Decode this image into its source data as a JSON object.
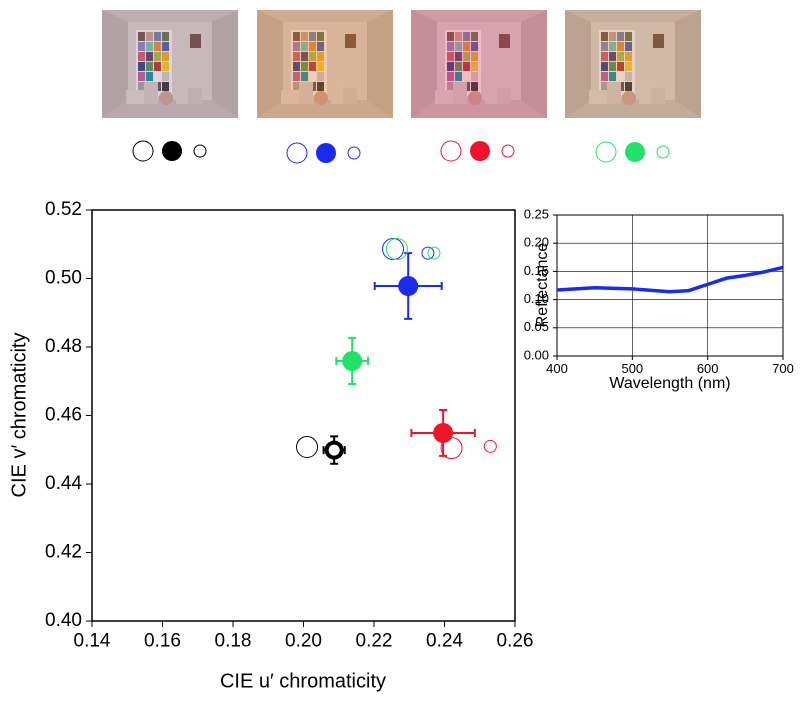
{
  "chart_data": [
    {
      "type": "scatter",
      "xlabel": "CIE u′ chromaticity",
      "ylabel": "CIE v′ chromaticity",
      "xlim": [
        0.14,
        0.26
      ],
      "ylim": [
        0.4,
        0.52
      ],
      "xticks": [
        0.14,
        0.16,
        0.18,
        {
          "value": 0.2,
          "label": "0.20"
        },
        0.22,
        0.24,
        0.26
      ],
      "yticks": [
        {
          "value": 0.4,
          "label": "0.40"
        },
        0.42,
        0.44,
        0.46,
        0.48,
        {
          "value": 0.5,
          "label": "0.50"
        },
        0.52
      ],
      "grid": false,
      "series": [
        {
          "color": "#000000",
          "marker": "open-large",
          "x": [
            0.201
          ],
          "y": [
            0.4508
          ]
        },
        {
          "color": "#000000",
          "marker": "ring",
          "x": [
            0.2087
          ],
          "y": [
            0.4499
          ],
          "xerr": [
            0.003
          ],
          "yerr": [
            0.004
          ]
        },
        {
          "color": "#1a2bf0",
          "marker": "open-large",
          "x": [
            0.2254
          ],
          "y": [
            0.5086
          ]
        },
        {
          "color": "#1a2bf0",
          "marker": "filled",
          "x": [
            0.2297
          ],
          "y": [
            0.4978
          ],
          "xerr": [
            0.0095
          ],
          "yerr": [
            0.0096
          ]
        },
        {
          "color": "#1a2bf0",
          "marker": "open-small",
          "x": [
            0.2353
          ],
          "y": [
            0.5074
          ]
        },
        {
          "color": "#f0142a",
          "marker": "open-large",
          "x": [
            0.242
          ],
          "y": [
            0.4505
          ]
        },
        {
          "color": "#f0142a",
          "marker": "filled",
          "x": [
            0.2396
          ],
          "y": [
            0.4549
          ],
          "xerr": [
            0.009
          ],
          "yerr": [
            0.0067
          ]
        },
        {
          "color": "#f0142a",
          "marker": "open-small",
          "x": [
            0.253
          ],
          "y": [
            0.451
          ]
        },
        {
          "color": "#22e36a",
          "marker": "open-large",
          "x": [
            0.2265
          ],
          "y": [
            0.5086
          ]
        },
        {
          "color": "#22e36a",
          "marker": "filled",
          "x": [
            0.2138
          ],
          "y": [
            0.4759
          ],
          "xerr": [
            0.0045
          ],
          "yerr": [
            0.0067
          ]
        },
        {
          "color": "#22e36a",
          "marker": "open-small",
          "x": [
            0.237
          ],
          "y": [
            0.5074
          ]
        }
      ]
    },
    {
      "type": "line",
      "xlabel": "Wavelength (nm)",
      "ylabel": "Reflectance",
      "xlim": [
        400,
        700
      ],
      "ylim": [
        0,
        0.25
      ],
      "xticks": [
        400,
        500,
        600,
        700
      ],
      "yticks": [
        {
          "value": 0,
          "label": "0.00"
        },
        0.05,
        {
          "value": 0.1,
          "label": "0.10"
        },
        0.15,
        {
          "value": 0.2,
          "label": "0.20"
        },
        0.25
      ],
      "grid": true,
      "series": [
        {
          "color": "#1a2bf0",
          "x": [
            400,
            450,
            500,
            550,
            575,
            600,
            625,
            650,
            675,
            700
          ],
          "values": [
            0.117,
            0.121,
            0.119,
            0.114,
            0.116,
            0.127,
            0.138,
            0.143,
            0.149,
            0.157
          ]
        }
      ]
    }
  ]
}
